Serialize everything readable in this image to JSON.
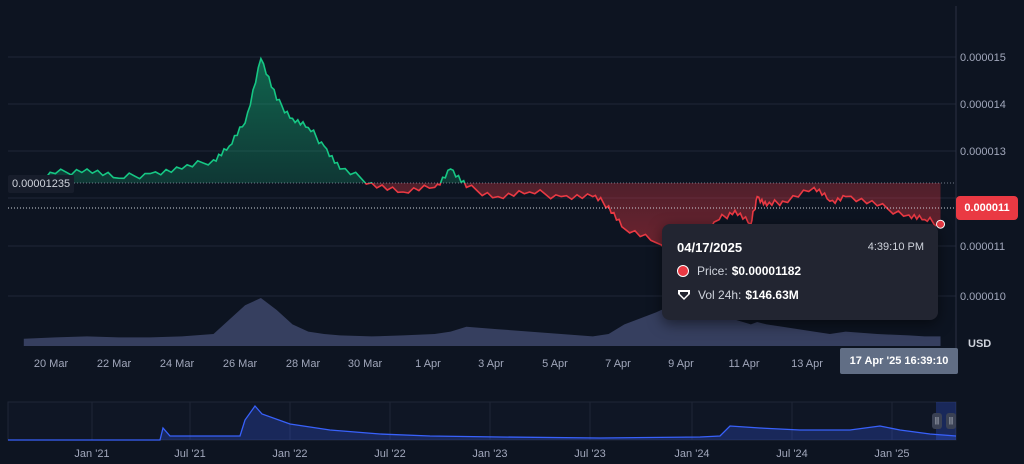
{
  "chart_data": {
    "type": "area",
    "ylim": [
      9.5e-06,
      1.65e-05
    ],
    "reference_price": "0.00001235",
    "current_price": "0.000011",
    "currency_label": "USD",
    "y_ticks": [
      "0.000015",
      "0.000014",
      "0.000013",
      "0.000011",
      "0.000011",
      "0.000010"
    ],
    "x_ticks": [
      "20 Mar",
      "22 Mar",
      "24 Mar",
      "26 Mar",
      "28 Mar",
      "30 Mar",
      "1 Apr",
      "3 Apr",
      "5 Apr",
      "7 Apr",
      "9 Apr",
      "11 Apr",
      "13 Apr"
    ],
    "cursor_label": "17 Apr '25 16:39:10",
    "x_days": [
      0,
      1,
      2,
      3,
      4,
      5,
      6,
      6.5,
      7,
      7.5,
      8,
      8.5,
      9,
      9.5,
      10,
      11,
      12,
      13,
      13.5,
      14,
      15,
      16,
      17,
      18,
      18.5,
      19,
      20,
      21,
      22,
      22.5,
      23,
      23.2,
      23.5,
      24,
      25,
      25.5,
      26,
      27,
      28,
      28.5,
      29
    ],
    "price": [
      1.26e-05,
      1.29e-05,
      1.3e-05,
      1.28e-05,
      1.29e-05,
      1.3e-05,
      1.32e-05,
      1.35e-05,
      1.4e-05,
      1.54e-05,
      1.45e-05,
      1.41e-05,
      1.39e-05,
      1.35e-05,
      1.3e-05,
      1.27e-05,
      1.25e-05,
      1.26e-05,
      1.3e-05,
      1.26e-05,
      1.24e-05,
      1.25e-05,
      1.24e-05,
      1.24e-05,
      1.22e-05,
      1.17e-05,
      1.14e-05,
      1.11e-05,
      1.19e-05,
      1.21e-05,
      1.18e-05,
      1.24e-05,
      1.22e-05,
      1.23e-05,
      1.26e-05,
      1.23e-05,
      1.24e-05,
      1.22e-05,
      1.2e-05,
      1.19e-05,
      1.18e-05
    ],
    "volume_relative": [
      0.15,
      0.18,
      0.2,
      0.18,
      0.18,
      0.2,
      0.25,
      0.55,
      0.85,
      1.0,
      0.75,
      0.45,
      0.3,
      0.25,
      0.22,
      0.2,
      0.22,
      0.25,
      0.3,
      0.4,
      0.35,
      0.3,
      0.25,
      0.2,
      0.25,
      0.45,
      0.7,
      1.0,
      0.75,
      0.55,
      0.45,
      0.5,
      0.45,
      0.4,
      0.3,
      0.25,
      0.3,
      0.25,
      0.22,
      0.2,
      0.2
    ],
    "navigator": {
      "x_ticks": [
        "Jan '21",
        "Jul '21",
        "Jan '22",
        "Jul '22",
        "Jan '23",
        "Jul '23",
        "Jan '24",
        "Jul '24",
        "Jan '25"
      ]
    },
    "colors": {
      "above": "#16c784",
      "below": "#ea3943",
      "volume": "#3b4466",
      "navigator_line": "#3861fb"
    }
  },
  "tooltip": {
    "date": "04/17/2025",
    "time": "4:39:10 PM",
    "price_label": "Price:",
    "price_value": "$0.00001182",
    "vol_label": "Vol 24h:",
    "vol_value": "$146.63M"
  }
}
